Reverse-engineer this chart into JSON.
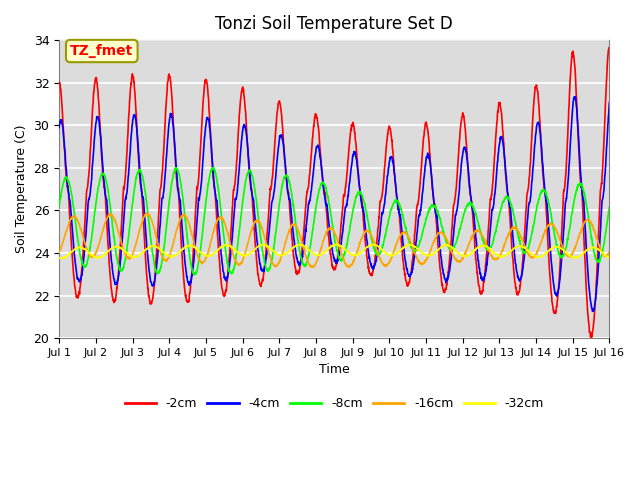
{
  "title": "Tonzi Soil Temperature Set D",
  "xlabel": "Time",
  "ylabel": "Soil Temperature (C)",
  "ylim": [
    20,
    34
  ],
  "xlim": [
    0,
    15
  ],
  "bg_color": "#dcdcdc",
  "series_colors": [
    "red",
    "blue",
    "lime",
    "orange",
    "yellow"
  ],
  "series_labels": [
    "-2cm",
    "-4cm",
    "-8cm",
    "-16cm",
    "-32cm"
  ],
  "annotation_text": "TZ_fmet",
  "annotation_bg": "#ffffcc",
  "annotation_border": "#999900",
  "annotation_fg": "red",
  "xtick_labels": [
    "Jul 1",
    "Jul 2",
    "Jul 3",
    "Jul 4",
    "Jul 5",
    "Jul 6",
    "Jul 7",
    "Jul 8",
    "Jul 9",
    "Jul 10",
    "Jul 11",
    "Jul 12",
    "Jul 13",
    "Jul 14",
    "Jul 15",
    "Jul 16"
  ],
  "ytick_values": [
    20,
    22,
    24,
    26,
    28,
    30,
    32,
    34
  ],
  "grid_color": "white",
  "num_points": 2000
}
